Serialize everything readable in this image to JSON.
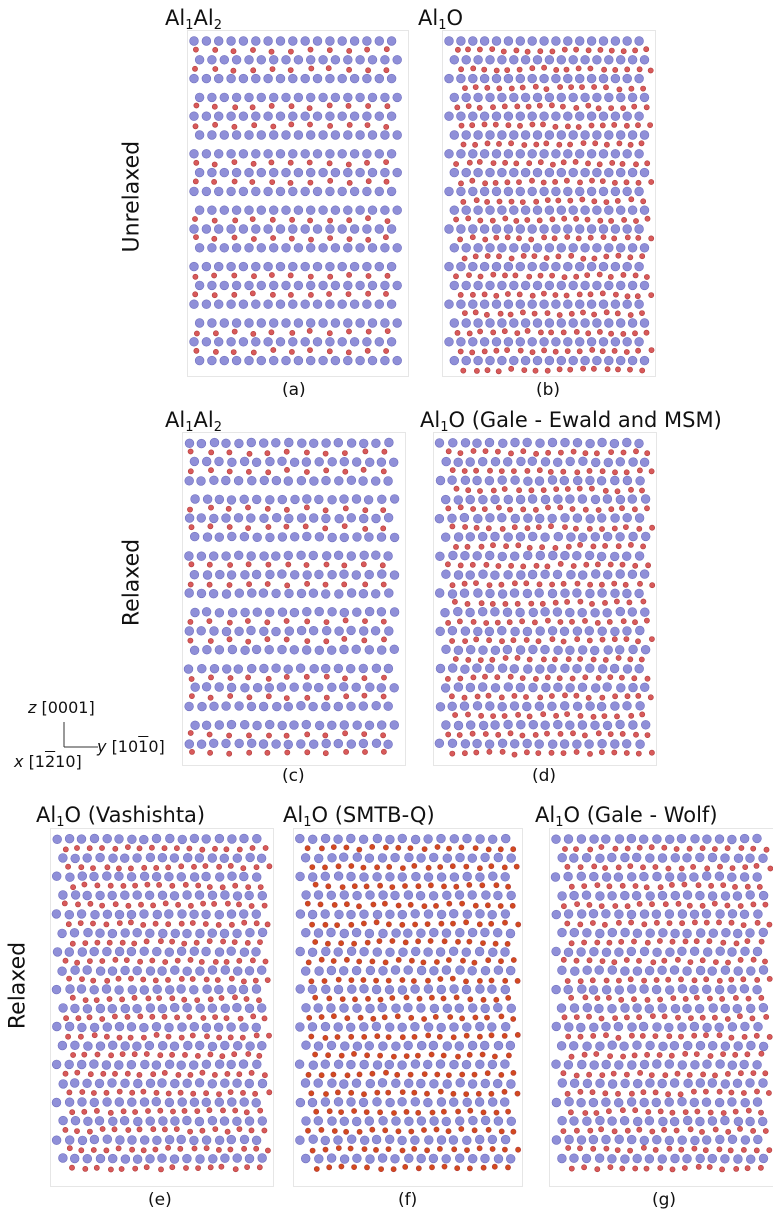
{
  "row_labels": {
    "top": "Unrelaxed",
    "middle": "Relaxed",
    "bottom": "Relaxed"
  },
  "panels": [
    {
      "id": "a",
      "title_main": "Al",
      "title_sub1": "1",
      "title_mid": "Al",
      "title_sub2": "2",
      "title_rest": "",
      "caption": "(a)",
      "relaxed": false,
      "layer_pattern": "AlAl2",
      "oxygen_color": "#d85a5a"
    },
    {
      "id": "b",
      "title_main": "Al",
      "title_sub1": "1",
      "title_mid": "O",
      "title_sub2": "",
      "title_rest": "",
      "caption": "(b)",
      "relaxed": false,
      "layer_pattern": "AlO",
      "oxygen_color": "#d85a5a"
    },
    {
      "id": "c",
      "title_main": "Al",
      "title_sub1": "1",
      "title_mid": "Al",
      "title_sub2": "2",
      "title_rest": "",
      "caption": "(c)",
      "relaxed": true,
      "layer_pattern": "AlAl2",
      "oxygen_color": "#d85a5a"
    },
    {
      "id": "d",
      "title_main": "Al",
      "title_sub1": "1",
      "title_mid": "O (Gale - Ewald and MSM)",
      "title_sub2": "",
      "title_rest": "",
      "caption": "(d)",
      "relaxed": true,
      "layer_pattern": "AlO",
      "oxygen_color": "#d85a5a"
    },
    {
      "id": "e",
      "title_main": "Al",
      "title_sub1": "1",
      "title_mid": "O (Vashishta)",
      "title_sub2": "",
      "title_rest": "",
      "caption": "(e)",
      "relaxed": true,
      "layer_pattern": "AlO",
      "oxygen_color": "#d85a5a"
    },
    {
      "id": "f",
      "title_main": "Al",
      "title_sub1": "1",
      "title_mid": "O (SMTB-Q)",
      "title_sub2": "",
      "title_rest": "",
      "caption": "(f)",
      "relaxed": true,
      "layer_pattern": "AlO",
      "oxygen_color": "#d24a1e"
    },
    {
      "id": "g",
      "title_main": "Al",
      "title_sub1": "1",
      "title_mid": "O (Gale - Wolf)",
      "title_sub2": "",
      "title_rest": "",
      "caption": "(g)",
      "relaxed": true,
      "layer_pattern": "AlO",
      "oxygen_color": "#d85a5a"
    }
  ],
  "axes": {
    "z_label": "z",
    "z_dir": "[0001]",
    "y_label": "y",
    "y_dir_pre": "[10",
    "y_dir_bar": "1",
    "y_dir_post": "0]",
    "x_label": "x",
    "x_dir_pre": "[1",
    "x_dir_bar": "2",
    "x_dir_post": "10]"
  },
  "colors": {
    "aluminum": "#8f8fd8",
    "aluminum_edge": "#6f6fbf",
    "oxygen_edge": "#b23a3a"
  }
}
